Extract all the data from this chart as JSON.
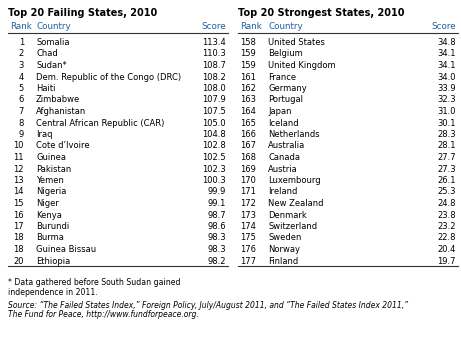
{
  "title_left": "Top 20 Failing States, 2010",
  "title_right": "Top 20 Strongest States, 2010",
  "failing_data": [
    [
      "1",
      "Somalia",
      "113.4"
    ],
    [
      "2",
      "Chad",
      "110.3"
    ],
    [
      "3",
      "Sudan*",
      "108.7"
    ],
    [
      "4",
      "Dem. Republic of the Congo (DRC)",
      "108.2"
    ],
    [
      "5",
      "Haiti",
      "108.0"
    ],
    [
      "6",
      "Zimbabwe",
      "107.9"
    ],
    [
      "7",
      "Afghanistan",
      "107.5"
    ],
    [
      "8",
      "Central African Republic (CAR)",
      "105.0"
    ],
    [
      "9",
      "Iraq",
      "104.8"
    ],
    [
      "10",
      "Cote d’Ivoire",
      "102.8"
    ],
    [
      "11",
      "Guinea",
      "102.5"
    ],
    [
      "12",
      "Pakistan",
      "102.3"
    ],
    [
      "13",
      "Yemen",
      "100.3"
    ],
    [
      "14",
      "Nigeria",
      "99.9"
    ],
    [
      "15",
      "Niger",
      "99.1"
    ],
    [
      "16",
      "Kenya",
      "98.7"
    ],
    [
      "17",
      "Burundi",
      "98.6"
    ],
    [
      "18",
      "Burma",
      "98.3"
    ],
    [
      "18",
      "Guinea Bissau",
      "98.3"
    ],
    [
      "20",
      "Ethiopia",
      "98.2"
    ]
  ],
  "strongest_data": [
    [
      "158",
      "United States",
      "34.8"
    ],
    [
      "159",
      "Belgium",
      "34.1"
    ],
    [
      "159",
      "United Kingdom",
      "34.1"
    ],
    [
      "161",
      "France",
      "34.0"
    ],
    [
      "162",
      "Germany",
      "33.9"
    ],
    [
      "163",
      "Portugal",
      "32.3"
    ],
    [
      "164",
      "Japan",
      "31.0"
    ],
    [
      "165",
      "Iceland",
      "30.1"
    ],
    [
      "166",
      "Netherlands",
      "28.3"
    ],
    [
      "167",
      "Australia",
      "28.1"
    ],
    [
      "168",
      "Canada",
      "27.7"
    ],
    [
      "169",
      "Austria",
      "27.3"
    ],
    [
      "170",
      "Luxembourg",
      "26.1"
    ],
    [
      "171",
      "Ireland",
      "25.3"
    ],
    [
      "172",
      "New Zealand",
      "24.8"
    ],
    [
      "173",
      "Denmark",
      "23.8"
    ],
    [
      "174",
      "Switzerland",
      "23.2"
    ],
    [
      "175",
      "Sweden",
      "22.8"
    ],
    [
      "176",
      "Norway",
      "20.4"
    ],
    [
      "177",
      "Finland",
      "19.7"
    ]
  ],
  "footnote1": "* Data gathered before South Sudan gained",
  "footnote2": "independence in 2011.",
  "source_line1": "Source: “The Failed States Index,” Foreign Policy, July/August 2011, and “The Failed States Index 2011,”",
  "source_line2": "The Fund for Peace, http://www.fundforpeace.org.",
  "bg_color": "#ffffff",
  "text_color": "#000000",
  "header_color": "#2060a0",
  "title_color": "#000000",
  "line_color": "#333333",
  "title_fs": 7.0,
  "header_fs": 6.3,
  "data_fs": 6.0,
  "footnote_fs": 5.6,
  "source_fs": 5.5
}
